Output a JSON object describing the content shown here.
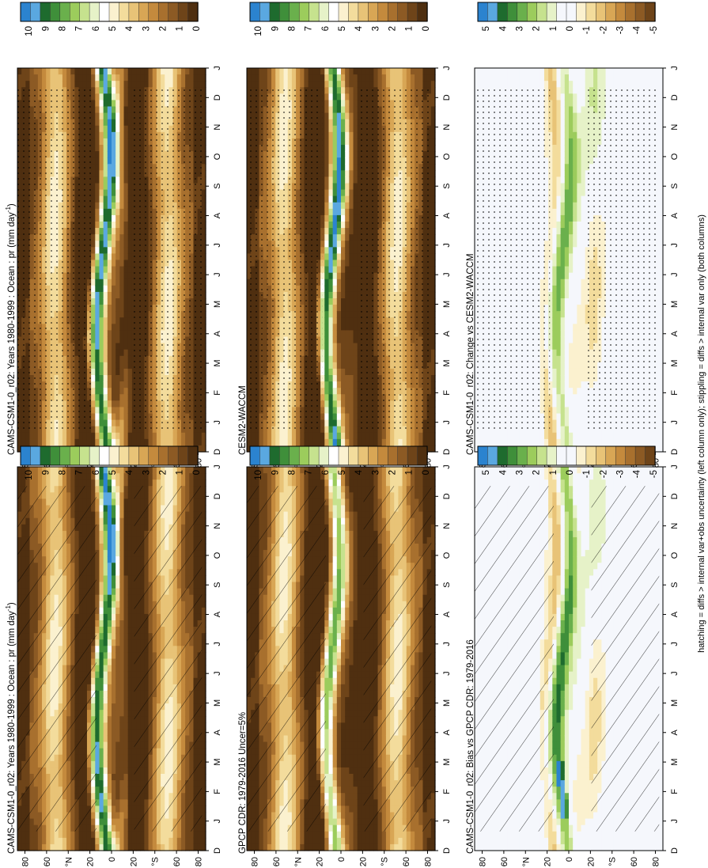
{
  "figure": {
    "footnote": "hatching = diffs > internal var+obs uncertainty (left column only); stippling = diffs > internal var only (both columns)"
  },
  "colors": {
    "abs_scale": [
      "#2b83cf",
      "#5aa8e0",
      "#1e6b2e",
      "#3f8f3a",
      "#6ab04c",
      "#9ccc5c",
      "#c6e28e",
      "#e6f2c8",
      "#ffffff",
      "#fbf1cf",
      "#f3dc9c",
      "#e8c377",
      "#d8a655",
      "#c48a3d",
      "#a8702e",
      "#8c5a24",
      "#6e4419",
      "#4f2f10"
    ],
    "diff_scale": [
      "#2b83cf",
      "#5aa8e0",
      "#1e6b2e",
      "#3f8f3a",
      "#6ab04c",
      "#9ccc5c",
      "#c6e28e",
      "#e6f2c8",
      "#f5f7fc",
      "#f5f7fc",
      "#fbf1cf",
      "#f3dc9c",
      "#e8c377",
      "#d8a655",
      "#c48a3d",
      "#a8702e",
      "#8c5a24",
      "#6e4419"
    ]
  },
  "panels": [
    {
      "title": "CAMS-CSM1-0_r02: Years 1980-1999 : Ocean : pr (mm day",
      "superscript": "-1",
      "title_suffix": ")",
      "kind": "abs",
      "variant": 0,
      "hatch": true
    },
    {
      "title": "CAMS-CSM1-0_r02: Years 1980-1999 : Ocean : pr (mm day",
      "superscript": "-1",
      "title_suffix": ")",
      "kind": "abs",
      "variant": 1,
      "hatch": false
    },
    {
      "title": "GPCP CDR: 1979-2016 Uncer=5%",
      "superscript": "",
      "title_suffix": "",
      "kind": "abs",
      "variant": 2,
      "hatch": true
    },
    {
      "title": "CESM2-WACCM",
      "superscript": "",
      "title_suffix": "",
      "kind": "abs",
      "variant": 3,
      "hatch": false
    },
    {
      "title": "CAMS-CSM1-0_r02: Bias vs GPCP CDR: 1979-2016",
      "superscript": "",
      "title_suffix": "",
      "kind": "diff",
      "variant": 4,
      "hatch": true
    },
    {
      "title": "CAMS-CSM1-0_r02: Change vs CESM2-WACCM",
      "superscript": "",
      "title_suffix": "",
      "kind": "diff",
      "variant": 5,
      "hatch": false
    }
  ],
  "chart_data": {
    "type": "heatmap",
    "description_x": "month (Dec..Jan, cyclic)",
    "months": [
      "D",
      "J",
      "F",
      "M",
      "A",
      "M",
      "J",
      "J",
      "A",
      "S",
      "O",
      "N",
      "D",
      "J"
    ],
    "latitude_ticks": [
      "80",
      "60",
      "°N",
      "20",
      "0",
      "20",
      "°S",
      "60",
      "80"
    ],
    "abs_colorbar_labels": [
      "10",
      "9",
      "8",
      "7",
      "6",
      "5",
      "4",
      "3",
      "2",
      "1",
      "0"
    ],
    "diff_colorbar_labels": [
      "5",
      "4",
      "3",
      "2",
      "1",
      "0",
      "-1",
      "-2",
      "-3",
      "-4",
      "-5"
    ],
    "abs_range": [
      0,
      10
    ],
    "diff_range": [
      -5,
      5
    ]
  }
}
